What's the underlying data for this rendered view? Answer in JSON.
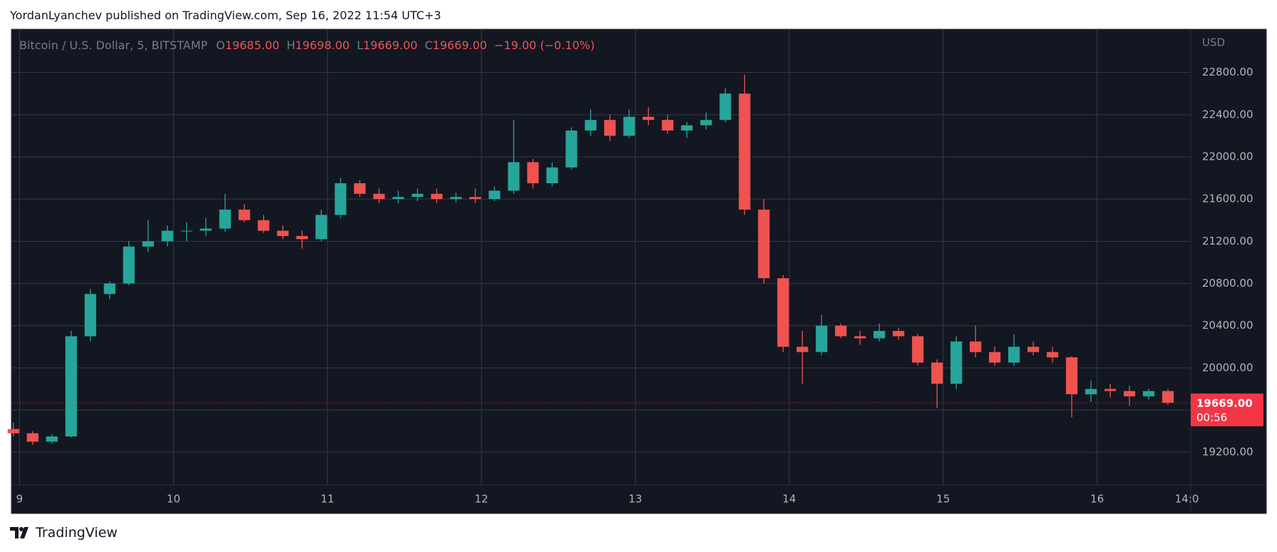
{
  "header": {
    "text": "YordanLyanchev published on TradingView.com, Sep 16, 2022 11:54 UTC+3"
  },
  "footer": {
    "brand": "TradingView"
  },
  "chart_data": {
    "type": "candlestick",
    "title": "Bitcoin / U.S. Dollar, 5, BITSTAMP",
    "legend_fields": [
      {
        "key": "O",
        "value": "19685.00"
      },
      {
        "key": "H",
        "value": "19698.00"
      },
      {
        "key": "L",
        "value": "19669.00"
      },
      {
        "key": "C",
        "value": "19669.00"
      }
    ],
    "change": "−19.00 (−0.10%)",
    "y_unit": "USD",
    "last_price": {
      "value": 19669,
      "label": "19669.00",
      "countdown": "00:56",
      "color": "#f23645"
    },
    "up_color": "#26a69a",
    "down_color": "#ef5350",
    "grid": true,
    "xlim": [
      8.947,
      16.608
    ],
    "xticks": [
      9,
      10,
      11,
      12,
      13,
      14,
      15,
      16,
      {
        "value": 16.583,
        "label": "14:0"
      }
    ],
    "ylim": [
      18890,
      23210
    ],
    "yticks": [
      {
        "value": 19200,
        "label": "19200.00"
      },
      {
        "value": 19600,
        "label": "19600.00"
      },
      {
        "value": 20000,
        "label": "20000.00"
      },
      {
        "value": 20400,
        "label": "20400.00"
      },
      {
        "value": 20800,
        "label": "20800.00"
      },
      {
        "value": 21200,
        "label": "21200.00"
      },
      {
        "value": 21600,
        "label": "21600.00"
      },
      {
        "value": 22000,
        "label": "22000.00"
      },
      {
        "value": 22400,
        "label": "22400.00"
      },
      {
        "value": 22800,
        "label": "22800.00"
      }
    ],
    "x": [
      8.96,
      9.085,
      9.21,
      9.335,
      9.46,
      9.585,
      9.71,
      9.835,
      9.96,
      10.085,
      10.21,
      10.335,
      10.46,
      10.585,
      10.71,
      10.835,
      10.96,
      11.085,
      11.21,
      11.335,
      11.46,
      11.585,
      11.71,
      11.835,
      11.96,
      12.085,
      12.21,
      12.335,
      12.46,
      12.585,
      12.71,
      12.835,
      12.96,
      13.085,
      13.21,
      13.335,
      13.46,
      13.585,
      13.71,
      13.835,
      13.96,
      14.085,
      14.21,
      14.335,
      14.46,
      14.585,
      14.71,
      14.835,
      14.96,
      15.085,
      15.21,
      15.335,
      15.46,
      15.585,
      15.71,
      15.835,
      15.96,
      16.085,
      16.21,
      16.335,
      16.46
    ],
    "open": [
      19420,
      19380,
      19300,
      19350,
      20300,
      20700,
      20800,
      21150,
      21200,
      21300,
      21300,
      21320,
      21500,
      21400,
      21300,
      21250,
      21220,
      21450,
      21750,
      21650,
      21600,
      21620,
      21650,
      21600,
      21620,
      21600,
      21680,
      21950,
      21750,
      21900,
      22250,
      22350,
      22200,
      22380,
      22350,
      22250,
      22300,
      22350,
      22600,
      21500,
      20850,
      20200,
      20150,
      20400,
      20300,
      20280,
      20350,
      20300,
      20050,
      19850,
      20250,
      20150,
      20050,
      20200,
      20150,
      20100,
      19750,
      19800,
      19780,
      19730,
      19780
    ],
    "high": [
      19480,
      19400,
      19370,
      20350,
      20750,
      20820,
      21200,
      21400,
      21350,
      21380,
      21420,
      21650,
      21550,
      21450,
      21350,
      21300,
      21500,
      21800,
      21780,
      21700,
      21680,
      21700,
      21700,
      21660,
      21700,
      21720,
      22350,
      21980,
      21950,
      22280,
      22450,
      22400,
      22450,
      22470,
      22400,
      22330,
      22420,
      22650,
      22780,
      21600,
      20880,
      20350,
      20500,
      20420,
      20350,
      20420,
      20380,
      20320,
      20080,
      20300,
      20400,
      20200,
      20320,
      20250,
      20200,
      20110,
      19880,
      19850,
      19830,
      19800,
      19800
    ],
    "low": [
      19350,
      19270,
      19280,
      19340,
      20250,
      20650,
      20780,
      21100,
      21150,
      21200,
      21250,
      21290,
      21380,
      21280,
      21220,
      21130,
      21200,
      21420,
      21620,
      21560,
      21560,
      21580,
      21560,
      21570,
      21560,
      21580,
      21650,
      21700,
      21720,
      21880,
      22200,
      22150,
      22180,
      22300,
      22220,
      22180,
      22260,
      22330,
      21450,
      20800,
      20150,
      19850,
      20120,
      20280,
      20220,
      20250,
      20270,
      20020,
      19620,
      19800,
      20100,
      20020,
      20020,
      20120,
      20050,
      19530,
      19680,
      19720,
      19640,
      19700,
      19650
    ],
    "close": [
      19380,
      19300,
      19350,
      20300,
      20700,
      20800,
      21150,
      21200,
      21300,
      21300,
      21320,
      21500,
      21400,
      21300,
      21250,
      21220,
      21450,
      21750,
      21650,
      21600,
      21620,
      21650,
      21600,
      21620,
      21600,
      21680,
      21950,
      21750,
      21900,
      22250,
      22350,
      22200,
      22380,
      22350,
      22250,
      22300,
      22350,
      22600,
      21500,
      20850,
      20200,
      20150,
      20400,
      20300,
      20280,
      20350,
      20300,
      20050,
      19850,
      20250,
      20150,
      20050,
      20200,
      20150,
      20100,
      19750,
      19800,
      19780,
      19730,
      19780,
      19669
    ]
  }
}
